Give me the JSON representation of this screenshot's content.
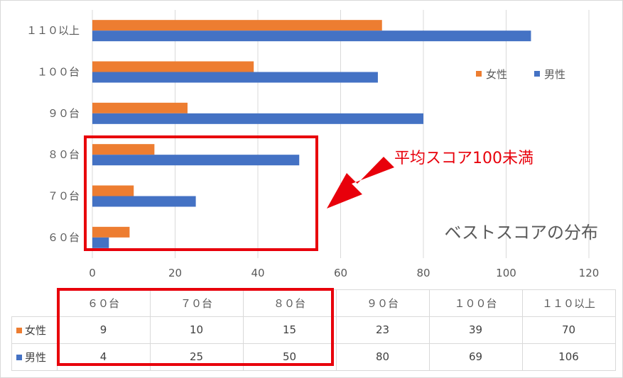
{
  "chart_data": {
    "type": "bar",
    "orientation": "horizontal",
    "title": "ベストスコアの分布",
    "categories": [
      "６０台",
      "７０台",
      "８０台",
      "９０台",
      "１００台",
      "１１０以上"
    ],
    "series": [
      {
        "name": "女性",
        "color": "#ed7d31",
        "values": [
          9,
          10,
          15,
          23,
          39,
          70
        ]
      },
      {
        "name": "男性",
        "color": "#4472c4",
        "values": [
          4,
          25,
          50,
          80,
          69,
          106
        ]
      }
    ],
    "xlim": [
      0,
      120
    ],
    "xticks": [
      0,
      20,
      40,
      60,
      80,
      100,
      120
    ],
    "grid": true,
    "legend_position": "right",
    "annotation": {
      "text": "平均スコア100未満",
      "color": "#e8000b",
      "highlight_categories": [
        "６０台",
        "７０台",
        "８０台"
      ]
    }
  },
  "table": {
    "headers": [
      "６０台",
      "７０台",
      "８０台",
      "９０台",
      "１００台",
      "１１０以上"
    ],
    "rows": [
      {
        "label": "女性",
        "color": "#ed7d31",
        "values": [
          "9",
          "10",
          "15",
          "23",
          "39",
          "70"
        ]
      },
      {
        "label": "男性",
        "color": "#4472c4",
        "values": [
          "4",
          "25",
          "50",
          "80",
          "69",
          "106"
        ]
      }
    ]
  }
}
